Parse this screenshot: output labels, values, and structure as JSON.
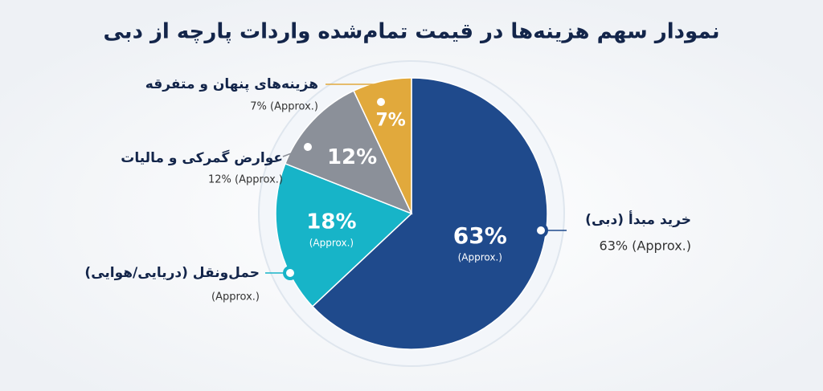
{
  "chart_data": {
    "type": "pie",
    "title": "نمودار سهم هزینه‌ها در قیمت تمام‌شده واردات پارچه از دبی",
    "categories": [
      "خرید مبدأ (دبی)",
      "حمل‌ونقل (دریایی/هوایی)",
      "عوارض گمرکی و مالیات",
      "هزینه‌های پنهان و متفرقه"
    ],
    "values": [
      63,
      18,
      12,
      7
    ],
    "value_labels": [
      "63%",
      "18%",
      "12%",
      "7%"
    ],
    "inner_notes": [
      "(Approx.)",
      "(Approx.)",
      null,
      null
    ],
    "annotations": [
      "63% (Approx.)",
      "(Approx.)",
      "12% (Approx.)",
      "7% (Approx.)"
    ],
    "colors": [
      "#1f4a8c",
      "#17b4c8",
      "#8b9099",
      "#e1a93c"
    ]
  }
}
